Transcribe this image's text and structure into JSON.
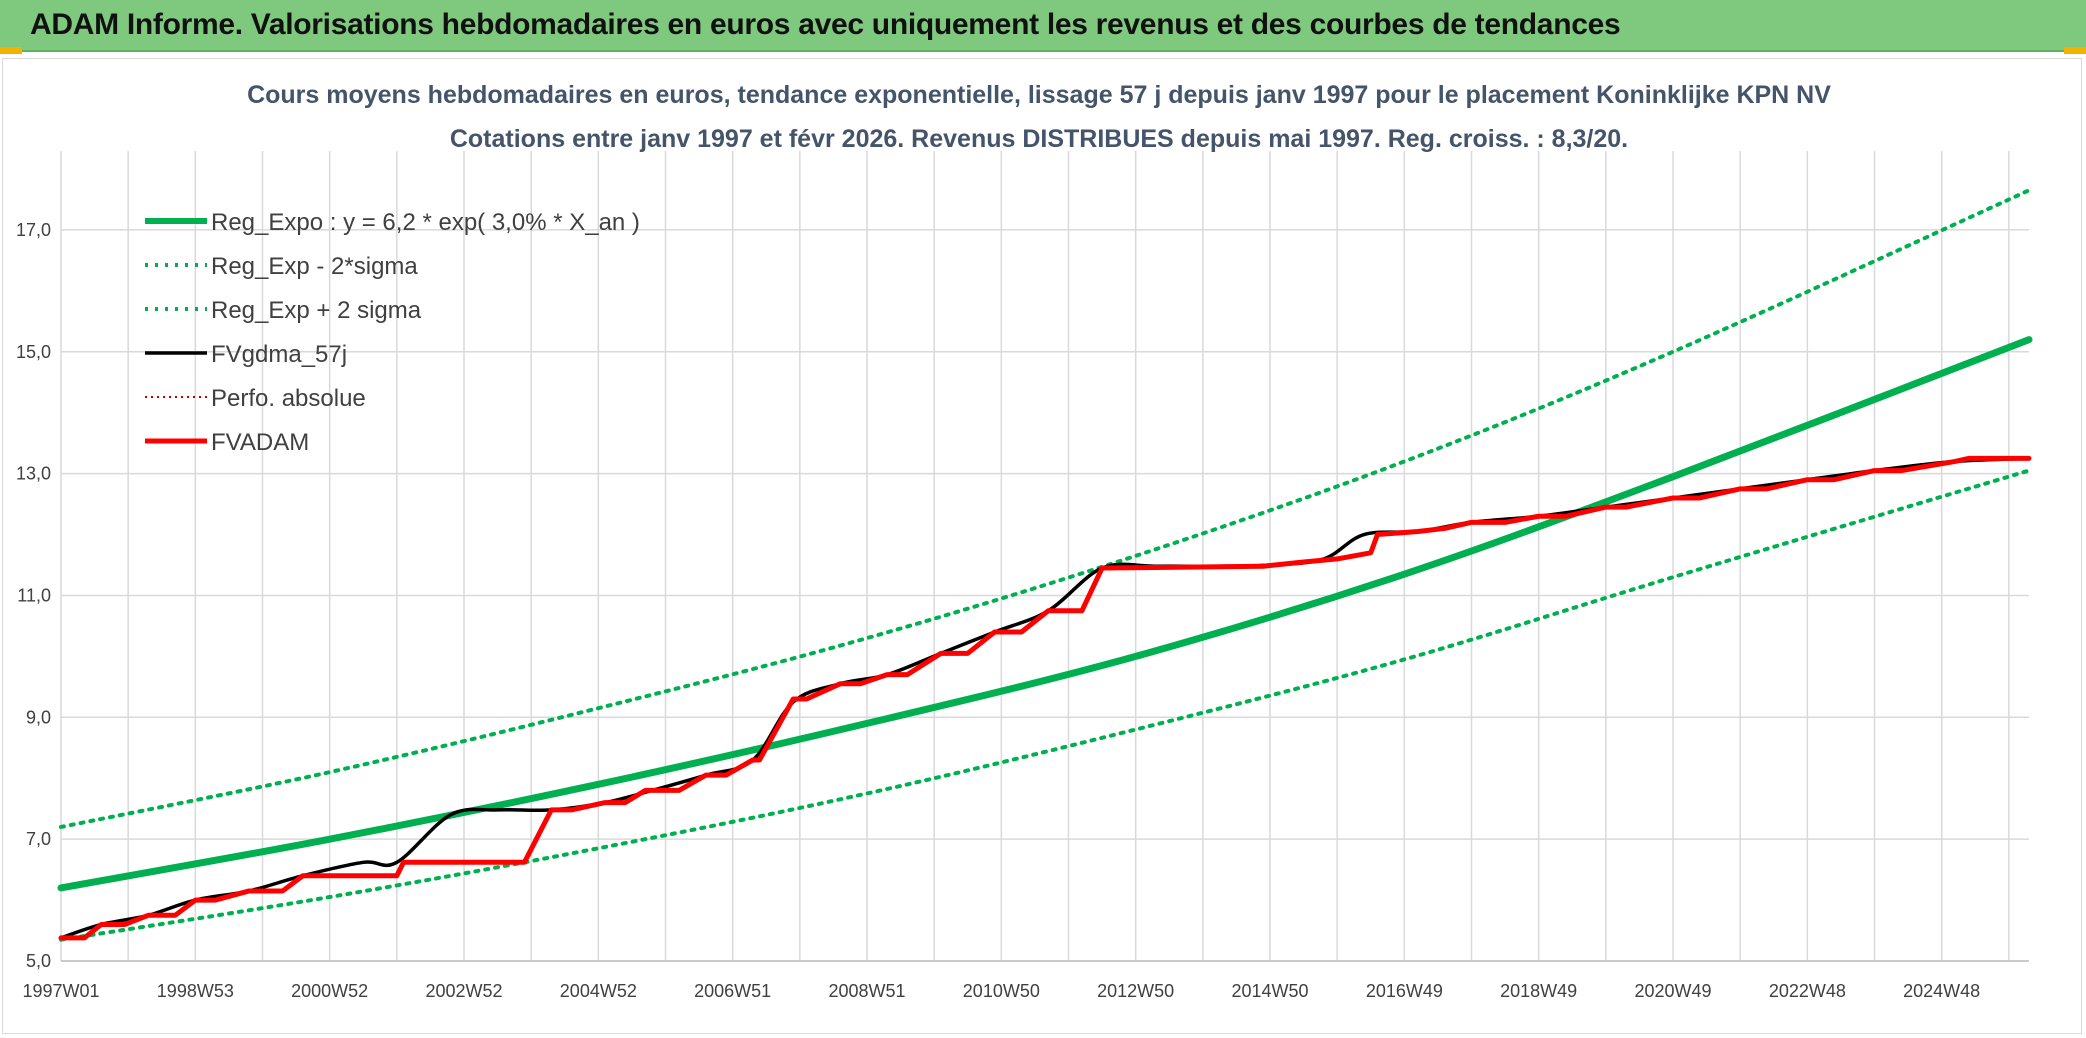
{
  "banner": {
    "title": "ADAM Informe. Valorisations hebdomadaires en euros avec uniquement les revenus et des courbes de tendances"
  },
  "colors": {
    "banner_bg": "#7fc97f",
    "trend_green": "#00b050",
    "fvadam_red": "#ff0000",
    "fvgdma_black": "#000000",
    "perfo_red": "#c00000",
    "grid": "#d9d9d9"
  },
  "chart_data": {
    "type": "line",
    "title_line1": "Cours moyens hebdomadaires en euros, tendance exponentielle, lissage 57 j depuis janv 1997 pour le placement Koninklijke KPN NV",
    "title_line2": "Cotations entre janv 1997 et févr 2026. Revenus DISTRIBUES depuis mai 1997. Reg. croiss. : 8,3/20.",
    "xlim": [
      1997.0,
      2026.3
    ],
    "ylim": [
      5.0,
      18.0
    ],
    "x_tick_labels": [
      "1997W01",
      "1998W53",
      "2000W52",
      "2002W52",
      "2004W52",
      "2006W51",
      "2008W51",
      "2010W50",
      "2012W50",
      "2014W50",
      "2016W49",
      "2018W49",
      "2020W49",
      "2022W48",
      "2024W48"
    ],
    "x_tick_positions": [
      1997.0,
      1999.0,
      2001.0,
      2003.0,
      2005.0,
      2007.0,
      2009.0,
      2011.0,
      2013.0,
      2015.0,
      2017.0,
      2019.0,
      2021.0,
      2023.0,
      2025.0
    ],
    "y_ticks": [
      5.0,
      7.0,
      9.0,
      11.0,
      13.0,
      15.0,
      17.0
    ],
    "y_tick_labels": [
      "5,0",
      "7,0",
      "9,0",
      "11,0",
      "13,0",
      "15,0",
      "17,0"
    ],
    "grid": true,
    "legend_position": "top-left",
    "series": [
      {
        "name": "Reg_Expo : y = 6,2 * exp( 3,0% *  X_an )",
        "color": "#00b050",
        "style": "solid-thick",
        "x": [
          1997.0,
          2001.0,
          2005.0,
          2009.0,
          2013.0,
          2017.0,
          2021.0,
          2026.3
        ],
        "y": [
          6.2,
          7.0,
          7.9,
          8.9,
          10.0,
          11.35,
          12.95,
          15.2
        ]
      },
      {
        "name": "Reg_Exp - 2*sigma",
        "color": "#00b050",
        "style": "dotted",
        "x": [
          1997.0,
          2001.0,
          2005.0,
          2009.0,
          2013.0,
          2017.0,
          2021.0,
          2026.3
        ],
        "y": [
          5.35,
          6.05,
          6.85,
          7.75,
          8.8,
          9.95,
          11.3,
          13.05
        ]
      },
      {
        "name": "Reg_Exp + 2 sigma",
        "color": "#00b050",
        "style": "dotted",
        "x": [
          1997.0,
          2001.0,
          2005.0,
          2009.0,
          2013.0,
          2017.0,
          2021.0,
          2026.3
        ],
        "y": [
          7.2,
          8.1,
          9.15,
          10.3,
          11.65,
          13.2,
          15.0,
          17.65
        ]
      },
      {
        "name": "FVgdma_57j",
        "color": "#000000",
        "style": "solid-smooth",
        "x": [
          1997.0,
          1997.6,
          1998.3,
          1999.0,
          1999.8,
          2000.6,
          2001.5,
          2002.0,
          2002.8,
          2003.5,
          2004.3,
          2005.1,
          2005.8,
          2006.6,
          2007.3,
          2007.9,
          2008.6,
          2009.3,
          2010.1,
          2010.9,
          2011.7,
          2012.5,
          2013.3,
          2014.2,
          2015.0,
          2015.8,
          2016.4,
          2017.2,
          2018.0,
          2019.0,
          2020.0,
          2021.0,
          2022.0,
          2023.0,
          2024.0,
          2025.2,
          2026.3
        ],
        "y": [
          5.38,
          5.6,
          5.75,
          6.0,
          6.15,
          6.4,
          6.62,
          6.62,
          7.4,
          7.48,
          7.48,
          7.6,
          7.8,
          8.05,
          8.3,
          9.25,
          9.55,
          9.7,
          10.05,
          10.4,
          10.75,
          11.45,
          11.48,
          11.48,
          11.5,
          11.6,
          12.0,
          12.05,
          12.2,
          12.3,
          12.45,
          12.6,
          12.75,
          12.9,
          13.05,
          13.2,
          13.25
        ]
      },
      {
        "name": "Perfo. absolue",
        "color": "#c00000",
        "style": "dotted-thin",
        "x": [],
        "y": []
      },
      {
        "name": "FVADAM",
        "color": "#ff0000",
        "style": "step",
        "x": [
          1997.0,
          1997.35,
          1997.6,
          1997.95,
          1998.3,
          1998.7,
          1999.0,
          1999.3,
          1999.8,
          2000.3,
          2000.6,
          2002.0,
          2002.1,
          2003.9,
          2004.3,
          2004.6,
          2005.1,
          2005.4,
          2005.7,
          2006.2,
          2006.6,
          2006.9,
          2007.3,
          2007.4,
          2007.9,
          2008.1,
          2008.6,
          2008.9,
          2009.3,
          2009.6,
          2010.1,
          2010.5,
          2010.9,
          2011.3,
          2011.7,
          2012.2,
          2012.5,
          2014.9,
          2015.5,
          2016.0,
          2016.5,
          2016.6,
          2017.2,
          2017.6,
          2018.0,
          2018.5,
          2019.0,
          2019.4,
          2020.0,
          2020.3,
          2021.0,
          2021.4,
          2022.0,
          2022.4,
          2023.0,
          2023.4,
          2024.0,
          2024.4,
          2025.2,
          2025.4,
          2026.3
        ],
        "y": [
          5.38,
          5.38,
          5.6,
          5.6,
          5.75,
          5.75,
          6.0,
          6.0,
          6.15,
          6.15,
          6.4,
          6.4,
          6.62,
          6.62,
          7.48,
          7.48,
          7.6,
          7.6,
          7.8,
          7.8,
          8.05,
          8.05,
          8.3,
          8.3,
          9.3,
          9.3,
          9.55,
          9.55,
          9.7,
          9.7,
          10.05,
          10.05,
          10.4,
          10.4,
          10.75,
          10.75,
          11.45,
          11.48,
          11.55,
          11.6,
          11.7,
          12.0,
          12.05,
          12.1,
          12.2,
          12.2,
          12.3,
          12.3,
          12.45,
          12.45,
          12.6,
          12.6,
          12.75,
          12.75,
          12.9,
          12.9,
          13.05,
          13.05,
          13.2,
          13.25,
          13.25
        ]
      }
    ]
  }
}
